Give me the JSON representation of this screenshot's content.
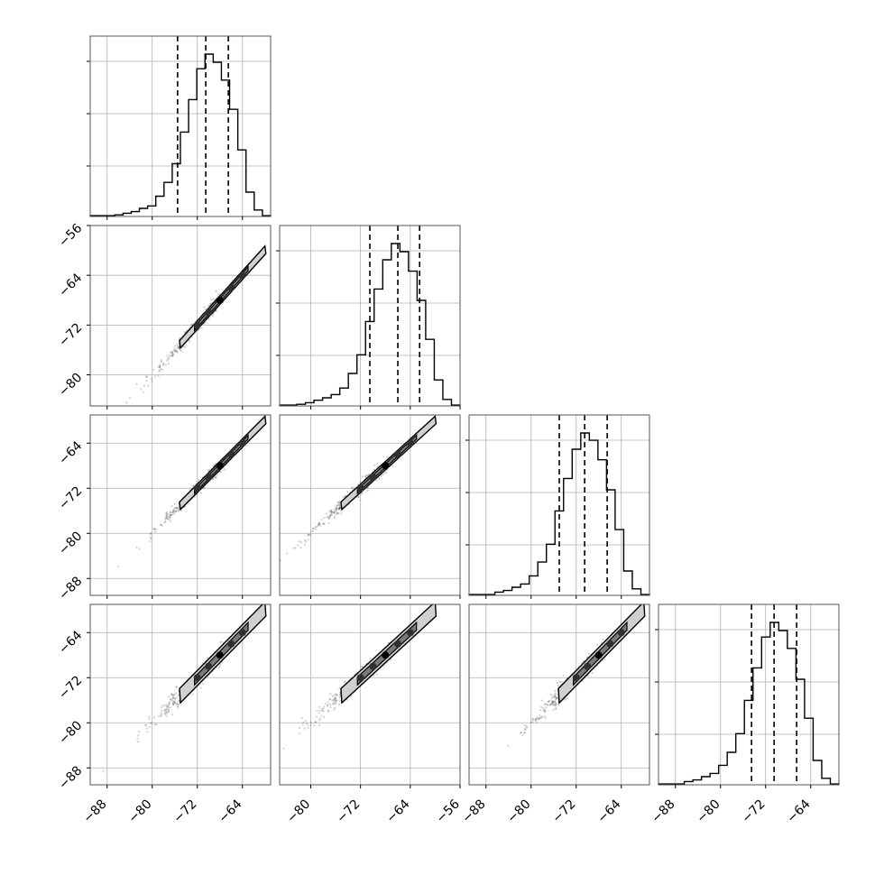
{
  "chart_data": {
    "type": "corner",
    "n_params": 4,
    "series_color": "#000000",
    "grid": true,
    "quantile_lines": "dashed",
    "params": [
      {
        "range": [
          -91,
          -59
        ],
        "ticks": [
          -88,
          -80,
          -72,
          -64
        ],
        "quantiles": [
          -75.5,
          -70.5,
          -66.5
        ],
        "hist": [
          0.005,
          0.005,
          0.005,
          0.01,
          0.02,
          0.03,
          0.05,
          0.065,
          0.125,
          0.21,
          0.325,
          0.52,
          0.72,
          0.91,
          1.0,
          0.95,
          0.84,
          0.66,
          0.41,
          0.15,
          0.04,
          0.005
        ]
      },
      {
        "range": [
          -85,
          -56
        ],
        "ticks": [
          -80,
          -72,
          -64,
          -56
        ],
        "quantiles": [
          -70.5,
          -66.0,
          -62.5
        ],
        "hist": [
          0.005,
          0.005,
          0.01,
          0.02,
          0.035,
          0.05,
          0.07,
          0.11,
          0.2,
          0.315,
          0.52,
          0.72,
          0.9,
          1.0,
          0.95,
          0.83,
          0.65,
          0.41,
          0.16,
          0.04,
          0.005
        ]
      },
      {
        "range": [
          -91,
          -59
        ],
        "ticks": [
          -88,
          -80,
          -72,
          -64
        ],
        "quantiles": [
          -75.0,
          -70.5,
          -66.5
        ],
        "hist": [
          0.005,
          0.005,
          0.005,
          0.02,
          0.03,
          0.05,
          0.07,
          0.12,
          0.205,
          0.315,
          0.52,
          0.72,
          0.9,
          1.0,
          0.955,
          0.835,
          0.65,
          0.405,
          0.15,
          0.04,
          0.005
        ]
      },
      {
        "range": [
          -91,
          -59
        ],
        "ticks": [
          -88,
          -80,
          -72,
          -64
        ],
        "quantiles": [
          -74.5,
          -70.5,
          -66.5
        ],
        "hist": [
          0.005,
          0.005,
          0.005,
          0.02,
          0.03,
          0.05,
          0.07,
          0.12,
          0.2,
          0.315,
          0.52,
          0.72,
          0.91,
          1.0,
          0.95,
          0.84,
          0.65,
          0.41,
          0.15,
          0.04,
          0.005
        ]
      }
    ],
    "x_tick_labels": [
      [
        "−88",
        "−80",
        "−72",
        "−64"
      ],
      [
        "−80",
        "−72",
        "−64",
        "−56"
      ],
      [
        "−88",
        "−80",
        "−72",
        "−64"
      ],
      [
        "−88",
        "−80",
        "−72",
        "−64"
      ]
    ],
    "y_tick_labels": [
      null,
      [
        "−56",
        "−64",
        "−72",
        "−80"
      ],
      [
        "−64",
        "−72",
        "−80",
        "−88"
      ],
      [
        "−64",
        "−72",
        "−80",
        "−88"
      ]
    ],
    "y_label_values": [
      null,
      [
        -56,
        -64,
        -72,
        -80
      ],
      [
        -64,
        -72,
        -80,
        -88
      ],
      [
        -64,
        -72,
        -80,
        -88
      ]
    ],
    "correlation_slope": 1.0,
    "contour_halfwidth": 1.6
  }
}
